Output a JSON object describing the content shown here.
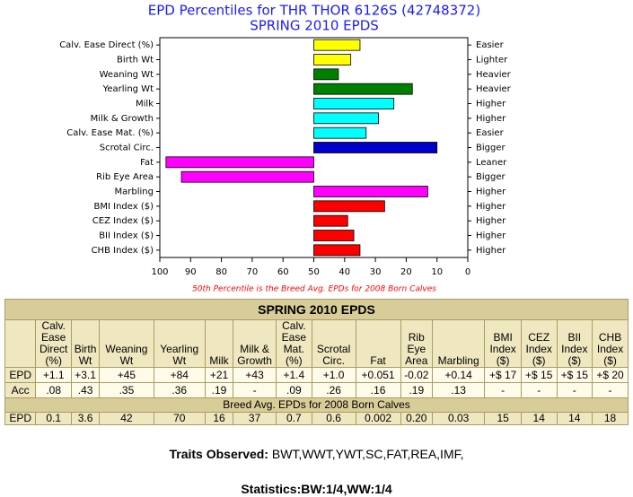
{
  "chart_data": {
    "type": "hbar",
    "title": "EPD Percentiles for THR THOR 6126S (42748372)",
    "subtitle": "SPRING 2010 EPDS",
    "categories": [
      "Calv. Ease Direct (%)",
      "Birth Wt",
      "Weaning Wt",
      "Yearling Wt",
      "Milk",
      "Milk & Growth",
      "Calv. Ease Mat. (%)",
      "Scrotal Circ.",
      "Fat",
      "Rib Eye Area",
      "Marbling",
      "BMI Index ($)",
      "CEZ Index ($)",
      "BII Index ($)",
      "CHB Index ($)"
    ],
    "right_labels": [
      "Easier",
      "Lighter",
      "Heavier",
      "Heavier",
      "Higher",
      "Higher",
      "Easier",
      "Bigger",
      "Leaner",
      "Bigger",
      "Higher",
      "Higher",
      "Higher",
      "Higher",
      "Higher"
    ],
    "values": [
      35,
      38,
      42,
      18,
      24,
      29,
      33,
      10,
      98,
      93,
      13,
      27,
      39,
      37,
      35
    ],
    "colors": [
      "#ffff00",
      "#ffff00",
      "#008000",
      "#008000",
      "#00ffff",
      "#00ffff",
      "#00ffff",
      "#0000cc",
      "#ff00ff",
      "#ff00ff",
      "#ff00ff",
      "#ff0000",
      "#ff0000",
      "#ff0000",
      "#ff0000"
    ],
    "baseline": 50,
    "xlim": [
      100,
      0
    ],
    "xticks": [
      100,
      90,
      80,
      70,
      60,
      50,
      40,
      30,
      20,
      10,
      0
    ],
    "note": "50th Percentile is the Breed Avg. EPDs for 2008 Born Calves"
  },
  "table": {
    "title": "SPRING 2010 EPDS",
    "header": [
      "Calv. Ease Direct (%)",
      "Birth Wt",
      "Weaning Wt",
      "Yearling Wt",
      "Milk",
      "Milk & Growth",
      "Calv. Ease Mat. (%)",
      "Scrotal Circ.",
      "Fat",
      "Rib Eye Area",
      "Marbling",
      "BMI Index ($)",
      "CEZ Index ($)",
      "BII Index ($)",
      "CHB Index ($)"
    ],
    "rows": [
      [
        "EPD",
        "+1.1",
        "+3.1",
        "+45",
        "+84",
        "+21",
        "+43",
        "+1.4",
        "+1.0",
        "+0.051",
        "-0.02",
        "+0.14",
        "+$ 17",
        "+$ 15",
        "+$ 15",
        "+$ 20"
      ],
      [
        "Acc",
        ".08",
        ".43",
        ".35",
        ".36",
        ".19",
        "-",
        ".09",
        ".26",
        ".16",
        ".19",
        ".13",
        "-",
        "-",
        "-",
        "-"
      ]
    ],
    "breed_title": "Breed Avg. EPDs for 2008 Born Calves",
    "breed_row": [
      "EPD",
      "0.1",
      "3.6",
      "42",
      "70",
      "16",
      "37",
      "0.7",
      "0.6",
      "0.002",
      "0.20",
      "0.03",
      "15",
      "14",
      "14",
      "18"
    ]
  },
  "footer": {
    "traits_label": "Traits Observed:",
    "traits": "BWT,WWT,YWT,SC,FAT,REA,IMF,",
    "stats_label": "Statistics:",
    "stats": "BW:1/4,WW:1/4"
  }
}
